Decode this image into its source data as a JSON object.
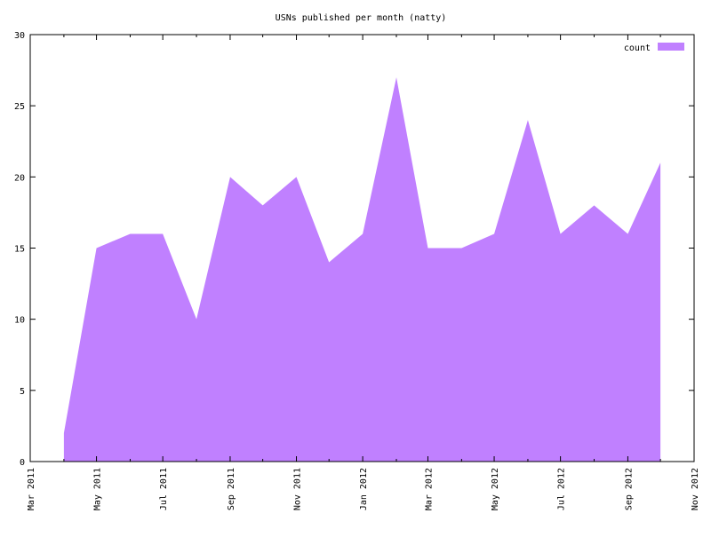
{
  "chart_data": {
    "type": "area",
    "title": "USNs published per month (natty)",
    "xlabel": "",
    "ylabel": "",
    "x_axis": {
      "type": "date",
      "range": [
        "2011-03-01",
        "2012-11-01"
      ],
      "tick_labels": [
        "Mar 2011",
        "May 2011",
        "Jul 2011",
        "Sep 2011",
        "Nov 2011",
        "Jan 2012",
        "Mar 2012",
        "May 2012",
        "Jul 2012",
        "Sep 2012",
        "Nov 2012"
      ],
      "tick_dates": [
        "2011-03-01",
        "2011-05-01",
        "2011-07-01",
        "2011-09-01",
        "2011-11-01",
        "2012-01-01",
        "2012-03-01",
        "2012-05-01",
        "2012-07-01",
        "2012-09-01",
        "2012-11-01"
      ]
    },
    "ylim": [
      0,
      30
    ],
    "y_ticks": [
      0,
      5,
      10,
      15,
      20,
      25,
      30
    ],
    "grid": false,
    "legend": {
      "position": "top-right"
    },
    "color": "#c080ff",
    "series": [
      {
        "name": "count",
        "x": [
          "2011-04-01",
          "2011-05-01",
          "2011-06-01",
          "2011-07-01",
          "2011-08-01",
          "2011-09-01",
          "2011-10-01",
          "2011-11-01",
          "2011-12-01",
          "2012-01-01",
          "2012-02-01",
          "2012-03-01",
          "2012-04-01",
          "2012-05-01",
          "2012-06-01",
          "2012-07-01",
          "2012-08-01",
          "2012-09-01",
          "2012-10-01"
        ],
        "values": [
          2,
          15,
          16,
          16,
          10,
          20,
          18,
          20,
          14,
          16,
          27,
          15,
          15,
          16,
          24,
          16,
          18,
          16,
          21
        ]
      }
    ]
  }
}
